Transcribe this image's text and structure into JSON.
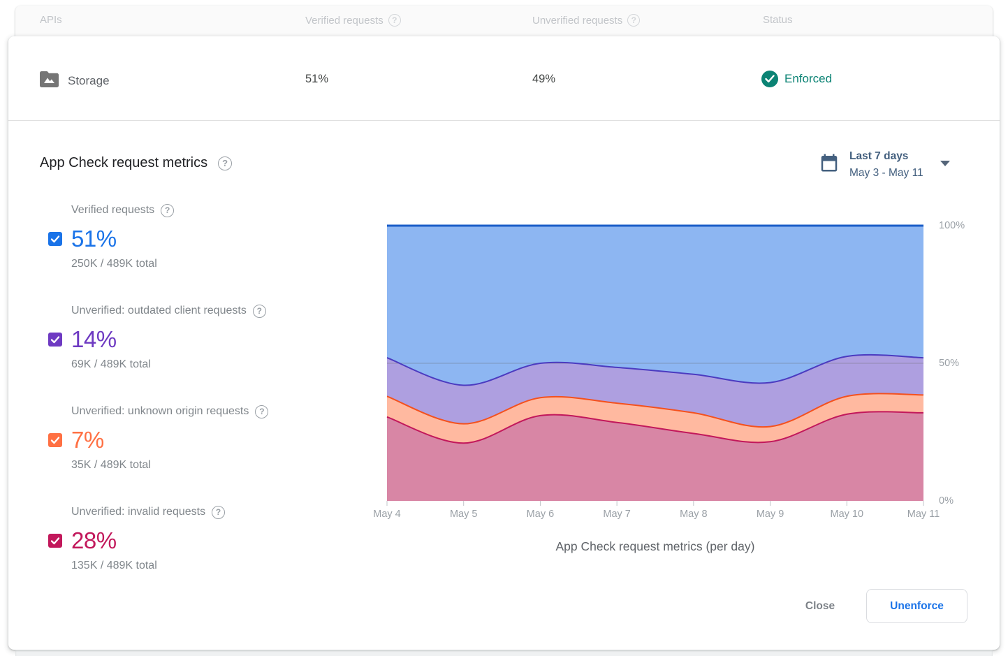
{
  "table_header": {
    "apis_label": "APIs",
    "verified_label": "Verified requests",
    "unverified_label": "Unverified requests",
    "status_label": "Status"
  },
  "api_row": {
    "name": "Storage",
    "verified_pct": "51%",
    "unverified_pct": "49%",
    "status_label": "Enforced",
    "status_color": "#0b8374"
  },
  "metrics_section": {
    "title": "App Check request metrics"
  },
  "date_picker": {
    "label": "Last 7 days",
    "range": "May 3 - May 11",
    "color": "#44607f"
  },
  "icons": {
    "help_glyph": "?"
  },
  "legend": {
    "items": [
      {
        "label": "Verified requests",
        "percent": "51%",
        "total": "250K / 489K total",
        "color": "#1a73e8"
      },
      {
        "label": "Unverified: outdated client requests",
        "percent": "14%",
        "total": "69K / 489K total",
        "color": "#6e3ac2"
      },
      {
        "label": "Unverified: unknown origin requests",
        "percent": "7%",
        "total": "35K / 489K total",
        "color": "#ff7043"
      },
      {
        "label": "Unverified: invalid requests",
        "percent": "28%",
        "total": "135K / 489K total",
        "color": "#c2185b"
      }
    ]
  },
  "chart_data": {
    "type": "area",
    "stacked": true,
    "x": [
      "May 4",
      "May 5",
      "May 6",
      "May 7",
      "May 8",
      "May 9",
      "May 10",
      "May 11"
    ],
    "series": [
      {
        "name": "Unverified: invalid requests",
        "values": [
          30.5,
          21,
          31,
          28.5,
          24.5,
          21.5,
          31.5,
          32
        ],
        "fill": "#d886a5",
        "stroke": "#c2185b"
      },
      {
        "name": "Unverified: unknown origin requests",
        "values": [
          7.5,
          7,
          6.5,
          7,
          7.5,
          5.5,
          6.5,
          6.5
        ],
        "fill": "#ffb9a0",
        "stroke": "#f4511e"
      },
      {
        "name": "Unverified: outdated client requests",
        "values": [
          14,
          14,
          12.5,
          13,
          14,
          16,
          14.5,
          13.5
        ],
        "fill": "#ae9fe0",
        "stroke": "#4b3bc0"
      },
      {
        "name": "Verified requests",
        "values": [
          48,
          58,
          50,
          51.5,
          54,
          57,
          47.5,
          48
        ],
        "fill": "#8db6f2",
        "stroke": "#1a5dc8"
      }
    ],
    "ylim": [
      0,
      100
    ],
    "yticks": [
      "0%",
      "50%",
      "100%"
    ],
    "gridlines": [
      50
    ],
    "caption": "App Check request metrics (per day)",
    "legend_position": "left"
  },
  "footer": {
    "close_label": "Close",
    "unenforce_label": "Unenforce"
  }
}
